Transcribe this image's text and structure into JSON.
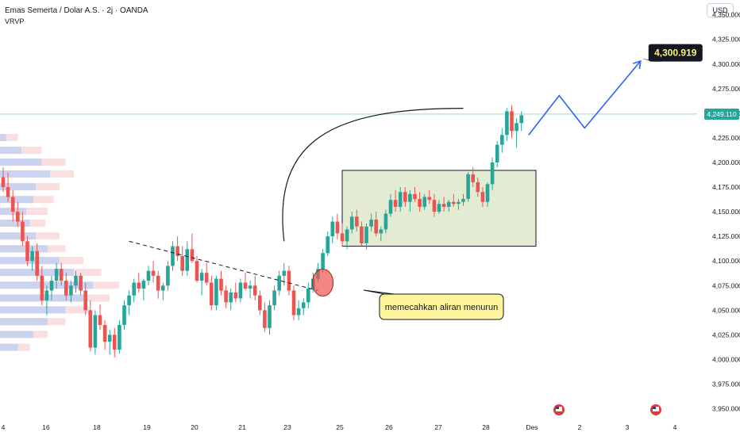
{
  "header": {
    "symbol_title": "Emas Semerta / Dolar A.S. · 2j · OANDA",
    "indicator_label": "VRVP",
    "currency_button": "USD"
  },
  "annotations": {
    "target_label": "4,300.919",
    "callout_text": "memecahkan aliran menurun",
    "current_price_label": "4,249.110"
  },
  "colors": {
    "bullish": "#26a69a",
    "bearish": "#ef5350",
    "projection": "#2962ff",
    "range_box": "#e3ecd2",
    "callout": "#fff59d"
  },
  "chart_data": {
    "type": "candlestick",
    "title": "Emas Semerta / Dolar A.S. · 2j · OANDA",
    "currency": "USD",
    "ylim": [
      3940,
      4365
    ],
    "y_ticks": [
      "4,350.000",
      "4,325.000",
      "4,300.000",
      "4,275.000",
      "4,250.000",
      "4,225.000",
      "4,200.000",
      "4,175.000",
      "4,150.000",
      "4,125.000",
      "4,100.000",
      "4,075.000",
      "4,050.000",
      "4,025.000",
      "4,000.000",
      "3,975.000",
      "3,950.000"
    ],
    "y_tick_values": [
      4350,
      4325,
      4300,
      4275,
      4250,
      4225,
      4200,
      4175,
      4150,
      4125,
      4100,
      4075,
      4050,
      4025,
      4000,
      3975,
      3950
    ],
    "x_ticks": [
      "4",
      "16",
      "18",
      "19",
      "20",
      "21",
      "23",
      "25",
      "26",
      "27",
      "28",
      "Des",
      "2",
      "3",
      "4"
    ],
    "last_price": 4249.11,
    "target_price": 4300.919,
    "candles": [
      [
        4185,
        4195,
        4170,
        4175
      ],
      [
        4175,
        4190,
        4160,
        4165
      ],
      [
        4165,
        4172,
        4140,
        4150
      ],
      [
        4150,
        4160,
        4135,
        4140
      ],
      [
        4140,
        4150,
        4115,
        4120
      ],
      [
        4120,
        4125,
        4095,
        4100
      ],
      [
        4100,
        4115,
        4090,
        4110
      ],
      [
        4110,
        4118,
        4080,
        4085
      ],
      [
        4085,
        4095,
        4055,
        4060
      ],
      [
        4060,
        4075,
        4045,
        4070
      ],
      [
        4070,
        4085,
        4060,
        4080
      ],
      [
        4080,
        4098,
        4072,
        4092
      ],
      [
        4092,
        4098,
        4075,
        4080
      ],
      [
        4080,
        4088,
        4060,
        4065
      ],
      [
        4065,
        4080,
        4058,
        4075
      ],
      [
        4075,
        4090,
        4068,
        4085
      ],
      [
        4085,
        4088,
        4065,
        4070
      ],
      [
        4070,
        4078,
        4045,
        4050
      ],
      [
        4050,
        4060,
        4008,
        4012
      ],
      [
        4012,
        4050,
        4005,
        4045
      ],
      [
        4045,
        4056,
        4030,
        4035
      ],
      [
        4035,
        4040,
        4010,
        4018
      ],
      [
        4018,
        4030,
        4005,
        4025
      ],
      [
        4025,
        4032,
        4002,
        4010
      ],
      [
        4010,
        4040,
        4006,
        4035
      ],
      [
        4035,
        4060,
        4030,
        4055
      ],
      [
        4055,
        4070,
        4045,
        4065
      ],
      [
        4065,
        4082,
        4058,
        4078
      ],
      [
        4078,
        4088,
        4068,
        4072
      ],
      [
        4072,
        4082,
        4060,
        4080
      ],
      [
        4080,
        4095,
        4075,
        4090
      ],
      [
        4090,
        4100,
        4078,
        4085
      ],
      [
        4085,
        4090,
        4062,
        4070
      ],
      [
        4070,
        4078,
        4060,
        4075
      ],
      [
        4075,
        4100,
        4070,
        4095
      ],
      [
        4095,
        4120,
        4090,
        4115
      ],
      [
        4115,
        4125,
        4100,
        4105
      ],
      [
        4105,
        4115,
        4085,
        4090
      ],
      [
        4090,
        4120,
        4085,
        4112
      ],
      [
        4112,
        4128,
        4098,
        4100
      ],
      [
        4100,
        4105,
        4078,
        4080
      ],
      [
        4080,
        4092,
        4065,
        4088
      ],
      [
        4088,
        4098,
        4075,
        4078
      ],
      [
        4078,
        4085,
        4050,
        4055
      ],
      [
        4055,
        4085,
        4050,
        4082
      ],
      [
        4082,
        4090,
        4065,
        4070
      ],
      [
        4070,
        4075,
        4052,
        4058
      ],
      [
        4058,
        4072,
        4050,
        4068
      ],
      [
        4068,
        4078,
        4058,
        4062
      ],
      [
        4062,
        4082,
        4058,
        4078
      ],
      [
        4078,
        4088,
        4070,
        4072
      ],
      [
        4072,
        4080,
        4062,
        4075
      ],
      [
        4075,
        4085,
        4060,
        4065
      ],
      [
        4065,
        4070,
        4045,
        4050
      ],
      [
        4050,
        4058,
        4028,
        4032
      ],
      [
        4032,
        4060,
        4025,
        4055
      ],
      [
        4055,
        4075,
        4050,
        4070
      ],
      [
        4070,
        4090,
        4065,
        4085
      ],
      [
        4085,
        4098,
        4075,
        4090
      ],
      [
        4090,
        4095,
        4065,
        4070
      ],
      [
        4070,
        4075,
        4040,
        4045
      ],
      [
        4045,
        4060,
        4040,
        4052
      ],
      [
        4052,
        4062,
        4045,
        4058
      ],
      [
        4058,
        4078,
        4052,
        4072
      ],
      [
        4072,
        4088,
        4068,
        4082
      ],
      [
        4082,
        4098,
        4078,
        4092
      ],
      [
        4092,
        4112,
        4088,
        4108
      ],
      [
        4108,
        4130,
        4105,
        4125
      ],
      [
        4125,
        4145,
        4118,
        4140
      ],
      [
        4140,
        4148,
        4122,
        4128
      ],
      [
        4128,
        4138,
        4115,
        4120
      ],
      [
        4120,
        4135,
        4112,
        4132
      ],
      [
        4132,
        4150,
        4128,
        4145
      ],
      [
        4145,
        4152,
        4130,
        4135
      ],
      [
        4135,
        4140,
        4115,
        4118
      ],
      [
        4118,
        4138,
        4112,
        4135
      ],
      [
        4135,
        4148,
        4130,
        4142
      ],
      [
        4142,
        4150,
        4125,
        4128
      ],
      [
        4128,
        4135,
        4120,
        4132
      ],
      [
        4132,
        4152,
        4128,
        4148
      ],
      [
        4148,
        4168,
        4145,
        4162
      ],
      [
        4162,
        4172,
        4150,
        4155
      ],
      [
        4155,
        4175,
        4150,
        4170
      ],
      [
        4170,
        4175,
        4155,
        4160
      ],
      [
        4160,
        4172,
        4150,
        4168
      ],
      [
        4168,
        4175,
        4160,
        4163
      ],
      [
        4163,
        4170,
        4150,
        4155
      ],
      [
        4155,
        4168,
        4152,
        4165
      ],
      [
        4165,
        4172,
        4158,
        4162
      ],
      [
        4162,
        4168,
        4145,
        4150
      ],
      [
        4150,
        4162,
        4148,
        4158
      ],
      [
        4158,
        4165,
        4150,
        4155
      ],
      [
        4155,
        4162,
        4150,
        4160
      ],
      [
        4160,
        4168,
        4155,
        4158
      ],
      [
        4158,
        4163,
        4152,
        4160
      ],
      [
        4160,
        4168,
        4156,
        4163
      ],
      [
        4163,
        4190,
        4160,
        4188
      ],
      [
        4188,
        4195,
        4175,
        4180
      ],
      [
        4180,
        4185,
        4165,
        4170
      ],
      [
        4170,
        4175,
        4155,
        4160
      ],
      [
        4160,
        4180,
        4155,
        4178
      ],
      [
        4178,
        4205,
        4172,
        4200
      ],
      [
        4200,
        4222,
        4195,
        4218
      ],
      [
        4218,
        4235,
        4210,
        4228
      ],
      [
        4228,
        4255,
        4222,
        4252
      ],
      [
        4252,
        4258,
        4225,
        4232
      ],
      [
        4232,
        4245,
        4215,
        4240
      ],
      [
        4240,
        4252,
        4232,
        4248
      ]
    ],
    "projection_path": [
      [
        4228,
        0
      ],
      [
        4268,
        6
      ],
      [
        4235,
        11
      ],
      [
        4303,
        22
      ]
    ],
    "range_box": {
      "from": 70,
      "to": 110,
      "low": 4115,
      "high": 4192
    },
    "trend_line": [
      [
        4120,
        26
      ],
      [
        4070,
        65
      ]
    ],
    "breakout_marker": {
      "index": 66,
      "price": 4078
    },
    "volume_profile": [
      [
        4225,
        0.15,
        0.05
      ],
      [
        4212,
        0.35,
        0.18
      ],
      [
        4200,
        0.55,
        0.35
      ],
      [
        4188,
        0.62,
        0.42
      ],
      [
        4175,
        0.5,
        0.3
      ],
      [
        4162,
        0.45,
        0.28
      ],
      [
        4150,
        0.4,
        0.22
      ],
      [
        4138,
        0.38,
        0.25
      ],
      [
        4125,
        0.5,
        0.3
      ],
      [
        4112,
        0.55,
        0.4
      ],
      [
        4100,
        0.7,
        0.5
      ],
      [
        4088,
        0.85,
        0.62
      ],
      [
        4075,
        1.0,
        0.78
      ],
      [
        4062,
        0.92,
        0.7
      ],
      [
        4050,
        0.75,
        0.55
      ],
      [
        4038,
        0.55,
        0.4
      ],
      [
        4025,
        0.4,
        0.28
      ],
      [
        4012,
        0.25,
        0.15
      ]
    ]
  }
}
